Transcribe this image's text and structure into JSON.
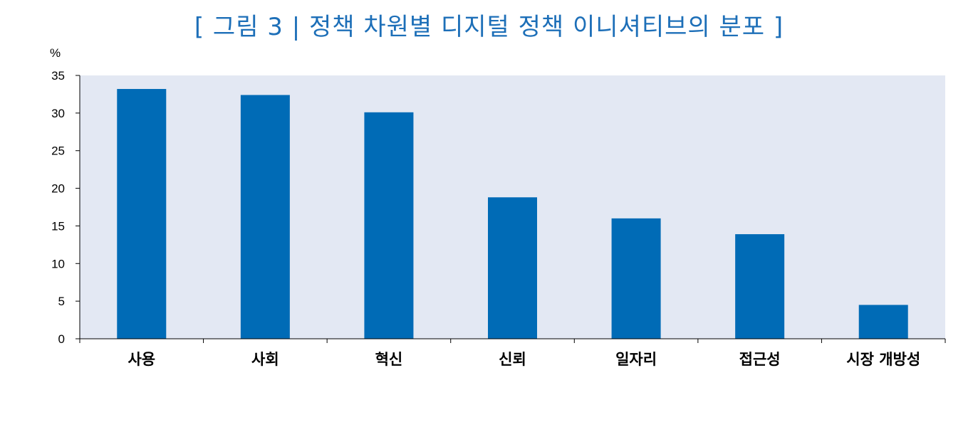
{
  "figure_title": "[ 그림 3 | 정책 차원별 디지털 정책 이니셔티브의 분포 ]",
  "chart_data": {
    "type": "bar",
    "title": "[ 그림 3 | 정책 차원별 디지털 정책 이니셔티브의 분포 ]",
    "unit": "%",
    "xlabel": "",
    "ylabel": "%",
    "ylim": [
      0,
      35
    ],
    "yticks": [
      0,
      5,
      10,
      15,
      20,
      25,
      30,
      35
    ],
    "ytick_labels": [
      "0",
      "5",
      "10",
      "15",
      "20",
      "25",
      "30",
      "35"
    ],
    "categories": [
      "사용",
      "사회",
      "혁신",
      "신뢰",
      "일자리",
      "접근성",
      "시장 개방성"
    ],
    "values": [
      33.2,
      32.4,
      30.1,
      18.8,
      16.0,
      13.9,
      4.5
    ],
    "grid": false,
    "legend": "none",
    "colors": {
      "bar": "#006bb6",
      "plot_background": "#e3e8f3",
      "axis": "#000000",
      "title": "#1d6fb8"
    }
  }
}
